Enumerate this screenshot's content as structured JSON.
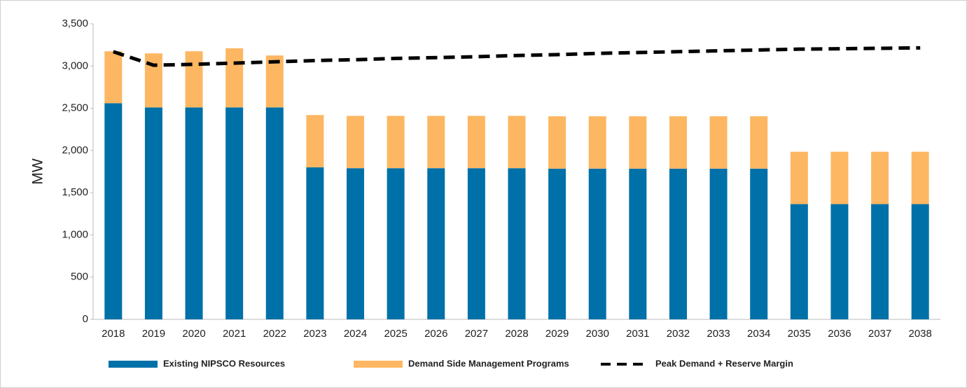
{
  "chart_data": {
    "type": "stacked-bar-line",
    "y_label": "MW",
    "categories": [
      "2018",
      "2019",
      "2020",
      "2021",
      "2022",
      "2023",
      "2024",
      "2025",
      "2026",
      "2027",
      "2028",
      "2029",
      "2030",
      "2031",
      "2032",
      "2033",
      "2034",
      "2035",
      "2036",
      "2037",
      "2038"
    ],
    "series": [
      {
        "name": "Existing NIPSCO Resources",
        "color": "#0070a8",
        "kind": "bar",
        "values": [
          2560,
          2510,
          2510,
          2510,
          2510,
          1800,
          1790,
          1790,
          1790,
          1790,
          1790,
          1785,
          1785,
          1785,
          1785,
          1785,
          1785,
          1365,
          1365,
          1365,
          1365
        ]
      },
      {
        "name": "Demand Side Management Programs",
        "color": "#fdb762",
        "kind": "bar",
        "values": [
          615,
          640,
          665,
          700,
          615,
          620,
          620,
          620,
          620,
          620,
          620,
          620,
          620,
          620,
          620,
          620,
          620,
          620,
          620,
          620,
          620
        ]
      },
      {
        "name": "Peak Demand + Reserve Margin",
        "color": "#000000",
        "kind": "line",
        "values": [
          3170,
          3010,
          3020,
          3035,
          3050,
          3065,
          3075,
          3090,
          3100,
          3110,
          3125,
          3135,
          3150,
          3160,
          3170,
          3180,
          3190,
          3200,
          3205,
          3210,
          3215
        ]
      }
    ],
    "ylim": [
      0,
      3500
    ],
    "yticks": [
      0,
      500,
      {
        "value": 1000,
        "label": "1,000"
      },
      {
        "value": 1500,
        "label": "1,500"
      },
      {
        "value": 2000,
        "label": "2,000"
      },
      {
        "value": 2500,
        "label": "2,500"
      },
      {
        "value": 3000,
        "label": "3,000"
      },
      {
        "value": 3500,
        "label": "3,500"
      }
    ],
    "legend": "bottom"
  }
}
